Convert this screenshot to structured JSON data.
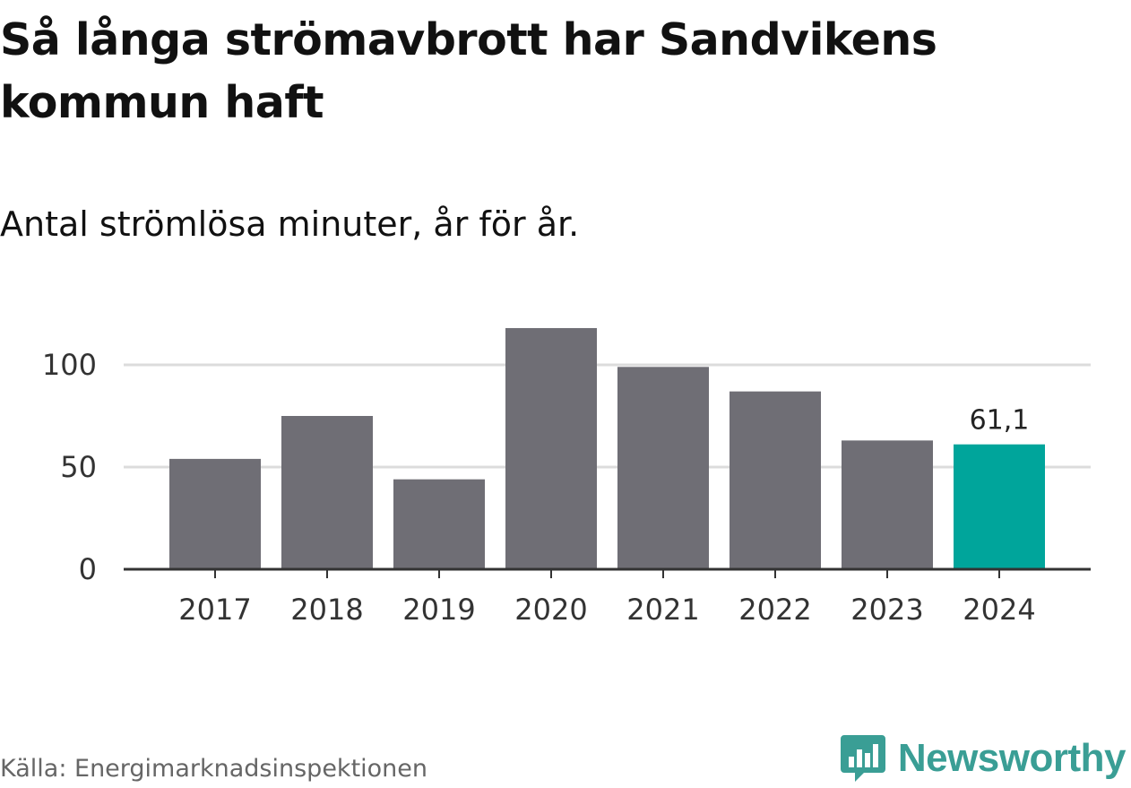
{
  "title": "Så långa strömavbrott har Sandvikens kommun haft",
  "subtitle": "Antal strömlösa minuter, år för år.",
  "source": "Källa: Energimarknadsinspektionen",
  "brand": {
    "name": "Newsworthy",
    "icon": "bar-chart-speech-bubble-icon"
  },
  "colors": {
    "bar": "#6f6e75",
    "highlight": "#00a59b",
    "grid": "#dcdcdc",
    "axis": "#333333"
  },
  "chart_data": {
    "type": "bar",
    "categories": [
      "2017",
      "2018",
      "2019",
      "2020",
      "2021",
      "2022",
      "2023",
      "2024"
    ],
    "values": [
      54,
      75,
      44,
      118,
      99,
      87,
      63,
      61.1
    ],
    "highlight_index": 7,
    "data_labels": [
      {
        "index": 7,
        "text": "61,1"
      }
    ],
    "yticks": [
      0,
      50,
      100
    ],
    "ylim": [
      0,
      120
    ],
    "xlabel": "",
    "ylabel": "",
    "grid": true
  }
}
